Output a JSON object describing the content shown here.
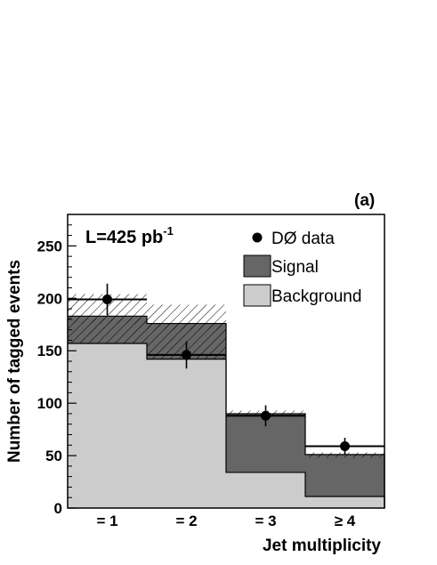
{
  "chart_data": {
    "type": "bar",
    "stacked": true,
    "panel_label": "(a)",
    "annotation": {
      "text": "L=425 pb",
      "superscript": "-1"
    },
    "xlabel": "Jet multiplicity",
    "ylabel": "Number of tagged events",
    "categories": [
      "= 1",
      "= 2",
      "= 3",
      "≥ 4"
    ],
    "ylim": [
      0,
      280
    ],
    "yticks": [
      0,
      50,
      100,
      150,
      200,
      250
    ],
    "series": [
      {
        "name": "Background",
        "kind": "histogram",
        "color": "#cccccc",
        "values": [
          157,
          142,
          34,
          11
        ]
      },
      {
        "name": "Signal",
        "kind": "histogram",
        "color": "#666666",
        "values": [
          26,
          34,
          56,
          40
        ]
      },
      {
        "name": "DØ data",
        "kind": "points-with-error",
        "color": "#000000",
        "values": [
          199,
          146,
          88,
          59
        ],
        "errors": [
          15,
          13,
          10,
          8
        ]
      }
    ],
    "prediction_total": [
      183,
      176,
      90,
      51
    ],
    "background_uncertainty_band": {
      "low": [
        157,
        142
      ],
      "high": [
        181,
        176
      ]
    },
    "total_uncertainty_band": {
      "low": [
        176,
        170,
        87,
        48
      ],
      "high": [
        204,
        194,
        93,
        53
      ]
    },
    "legend_position": "top-right",
    "grid": false
  }
}
